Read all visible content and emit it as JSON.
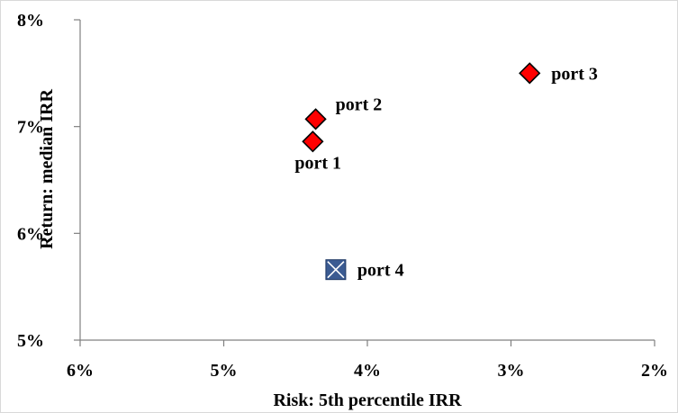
{
  "colors": {
    "diamond_fill": "#ff0000",
    "diamond_stroke": "#000000",
    "square_fill": "#3b5b92",
    "square_stroke": "#1f3864",
    "axis": "#808080"
  },
  "chart_data": {
    "type": "scatter",
    "title": "",
    "xlabel": "Risk: 5th percentile IRR",
    "ylabel": "Return: median IRR",
    "xlim": [
      6,
      2
    ],
    "ylim": [
      5,
      8
    ],
    "x_reversed": true,
    "grid": false,
    "x_ticks": [
      6,
      5,
      4,
      3,
      2
    ],
    "y_ticks": [
      5,
      6,
      7,
      8
    ],
    "x_tick_labels": [
      "6%",
      "5%",
      "4%",
      "3%",
      "2%"
    ],
    "y_tick_labels": [
      "5%",
      "6%",
      "7%",
      "8%"
    ],
    "points": [
      {
        "label": "port 1",
        "x": 4.38,
        "y": 6.86,
        "marker": "diamond"
      },
      {
        "label": "port 2",
        "x": 4.36,
        "y": 7.07,
        "marker": "diamond"
      },
      {
        "label": "port 3",
        "x": 2.87,
        "y": 7.5,
        "marker": "diamond"
      },
      {
        "label": "port 4",
        "x": 4.22,
        "y": 5.66,
        "marker": "square-x"
      }
    ]
  }
}
